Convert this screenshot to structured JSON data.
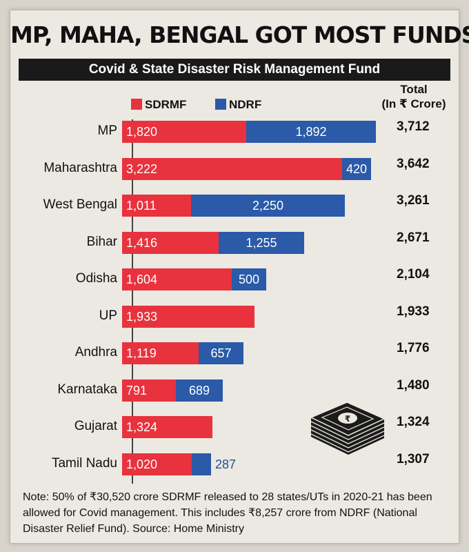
{
  "headline": "MP, MAHA, BENGAL GOT MOST FUNDS",
  "subtitle": "Covid & State Disaster Risk Management Fund",
  "legend": {
    "sdrmf": "SDRMF",
    "ndrf": "NDRF"
  },
  "total_header": {
    "line1": "Total",
    "line2": "(In ₹ Crore)"
  },
  "colors": {
    "sdrmf": "#e8323e",
    "ndrf": "#2a5aa8"
  },
  "icon": "cash-stack-icon",
  "note": "Note: 50% of ₹30,520 crore SDRMF released to 28 states/UTs in 2020-21 has been allowed for Covid management. This includes ₹8,257 crore from NDRF (National Disaster Relief Fund).  Source: Home Ministry",
  "chart_data": {
    "type": "bar",
    "orientation": "horizontal",
    "stacked": true,
    "title": "MP, MAHA, BENGAL GOT MOST FUNDS",
    "subtitle": "Covid & State Disaster Risk Management Fund",
    "unit": "₹ Crore",
    "categories": [
      "MP",
      "Maharashtra",
      "West Bengal",
      "Bihar",
      "Odisha",
      "UP",
      "Andhra",
      "Karnataka",
      "Gujarat",
      "Tamil Nadu"
    ],
    "categories_display": [
      "MP",
      "Maharashtra",
      "West Bengal",
      "Bihar",
      "Odisha",
      "UP",
      "Andhra",
      "Karnataka",
      "Gujarat",
      "Tamil Nadu"
    ],
    "series": [
      {
        "name": "SDRMF",
        "values": [
          1820,
          3222,
          1011,
          1416,
          1604,
          1933,
          1119,
          791,
          1324,
          1020
        ],
        "labels": [
          "1,820",
          "3,222",
          "1,011",
          "1,416",
          "1,604",
          "1,933",
          "1,119",
          "791",
          "1,324",
          "1,020"
        ]
      },
      {
        "name": "NDRF",
        "values": [
          1892,
          420,
          2250,
          1255,
          500,
          0,
          657,
          689,
          0,
          287
        ],
        "labels": [
          "1,892",
          "420",
          "2,250",
          "1,255",
          "500",
          "",
          "657",
          "689",
          "",
          "287"
        ]
      }
    ],
    "totals": [
      3712,
      3642,
      3261,
      2671,
      2104,
      1933,
      1776,
      1480,
      1324,
      1307
    ],
    "totals_labels": [
      "3,712",
      "3,642",
      "3,261",
      "2,671",
      "2,104",
      "1,933",
      "1,776",
      "1,480",
      "1,324",
      "1,307"
    ],
    "xlim": [
      0,
      3712
    ],
    "legend": "top-left",
    "grid": false
  }
}
